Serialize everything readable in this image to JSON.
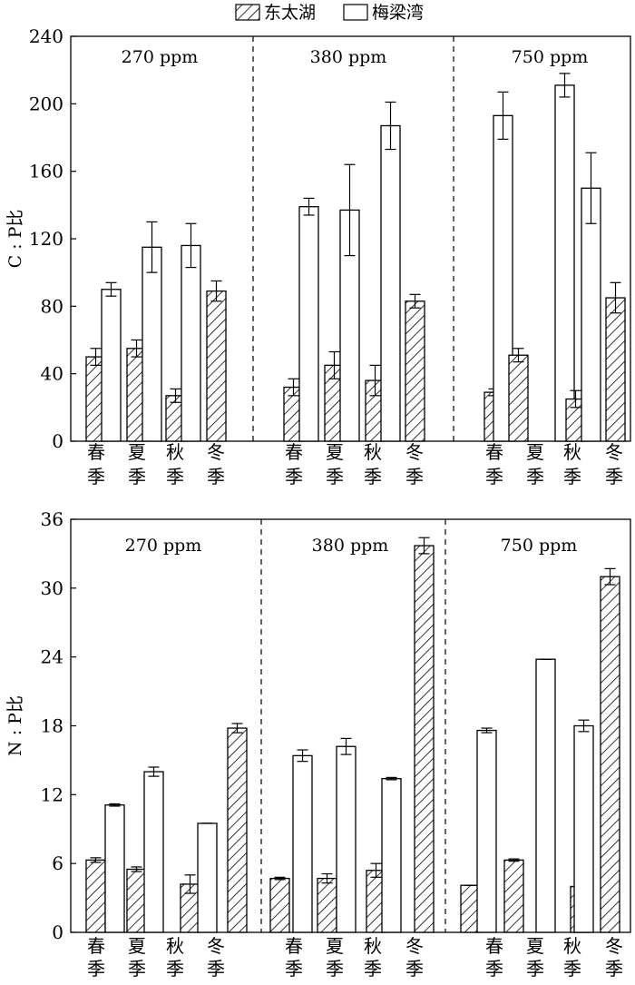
{
  "legend": [
    {
      "label": "东太湖",
      "pattern": "hatched"
    },
    {
      "label": "梅梁湾",
      "pattern": "open"
    }
  ],
  "colors": {
    "stroke": "#000000",
    "fill_open": "#ffffff",
    "hatch": "#000000"
  },
  "chart_data": [
    {
      "type": "bar",
      "ylabel": "C : P比",
      "ylim": [
        0,
        240
      ],
      "yticks": [
        "0",
        "40",
        "80",
        "120",
        "160",
        "200",
        "240"
      ],
      "panels": [
        "270 ppm",
        "380 ppm",
        "750 ppm"
      ],
      "categories": [
        "春季",
        "夏季",
        "秋季",
        "冬季"
      ],
      "category_labels": [
        [
          "春",
          "季"
        ],
        [
          "夏",
          "季"
        ],
        [
          "秋",
          "季"
        ],
        [
          "冬",
          "季"
        ]
      ],
      "series": [
        {
          "name": "东太湖",
          "values": [
            [
              50,
              55,
              27,
              89
            ],
            [
              32,
              45,
              36,
              83
            ],
            [
              29,
              51,
              25,
              85
            ]
          ],
          "errors": [
            [
              5,
              5,
              4,
              6
            ],
            [
              5,
              8,
              9,
              4
            ],
            [
              2,
              4,
              5,
              9
            ]
          ]
        },
        {
          "name": "梅梁湾",
          "values": [
            [
              90,
              115,
              116,
              null
            ],
            [
              139,
              137,
              187,
              null
            ],
            [
              193,
              211,
              150,
              null
            ]
          ],
          "errors": [
            [
              4,
              15,
              13,
              0
            ],
            [
              5,
              27,
              14,
              0
            ],
            [
              14,
              7,
              21,
              0
            ]
          ]
        }
      ]
    },
    {
      "type": "bar",
      "ylabel": "N : P比",
      "ylim": [
        0,
        36
      ],
      "yticks": [
        "0",
        "6",
        "12",
        "18",
        "24",
        "30",
        "36"
      ],
      "panels": [
        "270 ppm",
        "380 ppm",
        "750 ppm"
      ],
      "categories": [
        "春季",
        "夏季",
        "秋季",
        "冬季"
      ],
      "category_labels": [
        [
          "春",
          "季"
        ],
        [
          "夏",
          "季"
        ],
        [
          "秋",
          "季"
        ],
        [
          "冬",
          "季"
        ]
      ],
      "series": [
        {
          "name": "东太湖",
          "values": [
            [
              6.3,
              5.5,
              4.2,
              17.8
            ],
            [
              4.7,
              4.7,
              5.4,
              33.7
            ],
            [
              4.1,
              6.3,
              4.0,
              31.0
            ]
          ],
          "errors": [
            [
              0.2,
              0.2,
              0.8,
              0.4
            ],
            [
              0.1,
              0.4,
              0.6,
              0.7
            ],
            [
              0,
              0.1,
              0.4,
              0.7
            ]
          ]
        },
        {
          "name": "梅梁湾",
          "values": [
            [
              11.1,
              14.0,
              9.5,
              null
            ],
            [
              15.4,
              16.2,
              13.4,
              null
            ],
            [
              17.6,
              23.8,
              18.0,
              null
            ]
          ],
          "errors": [
            [
              0.1,
              0.4,
              0,
              0
            ],
            [
              0.5,
              0.7,
              0.1,
              0
            ],
            [
              0.2,
              0,
              0.5,
              0
            ]
          ]
        }
      ]
    }
  ]
}
